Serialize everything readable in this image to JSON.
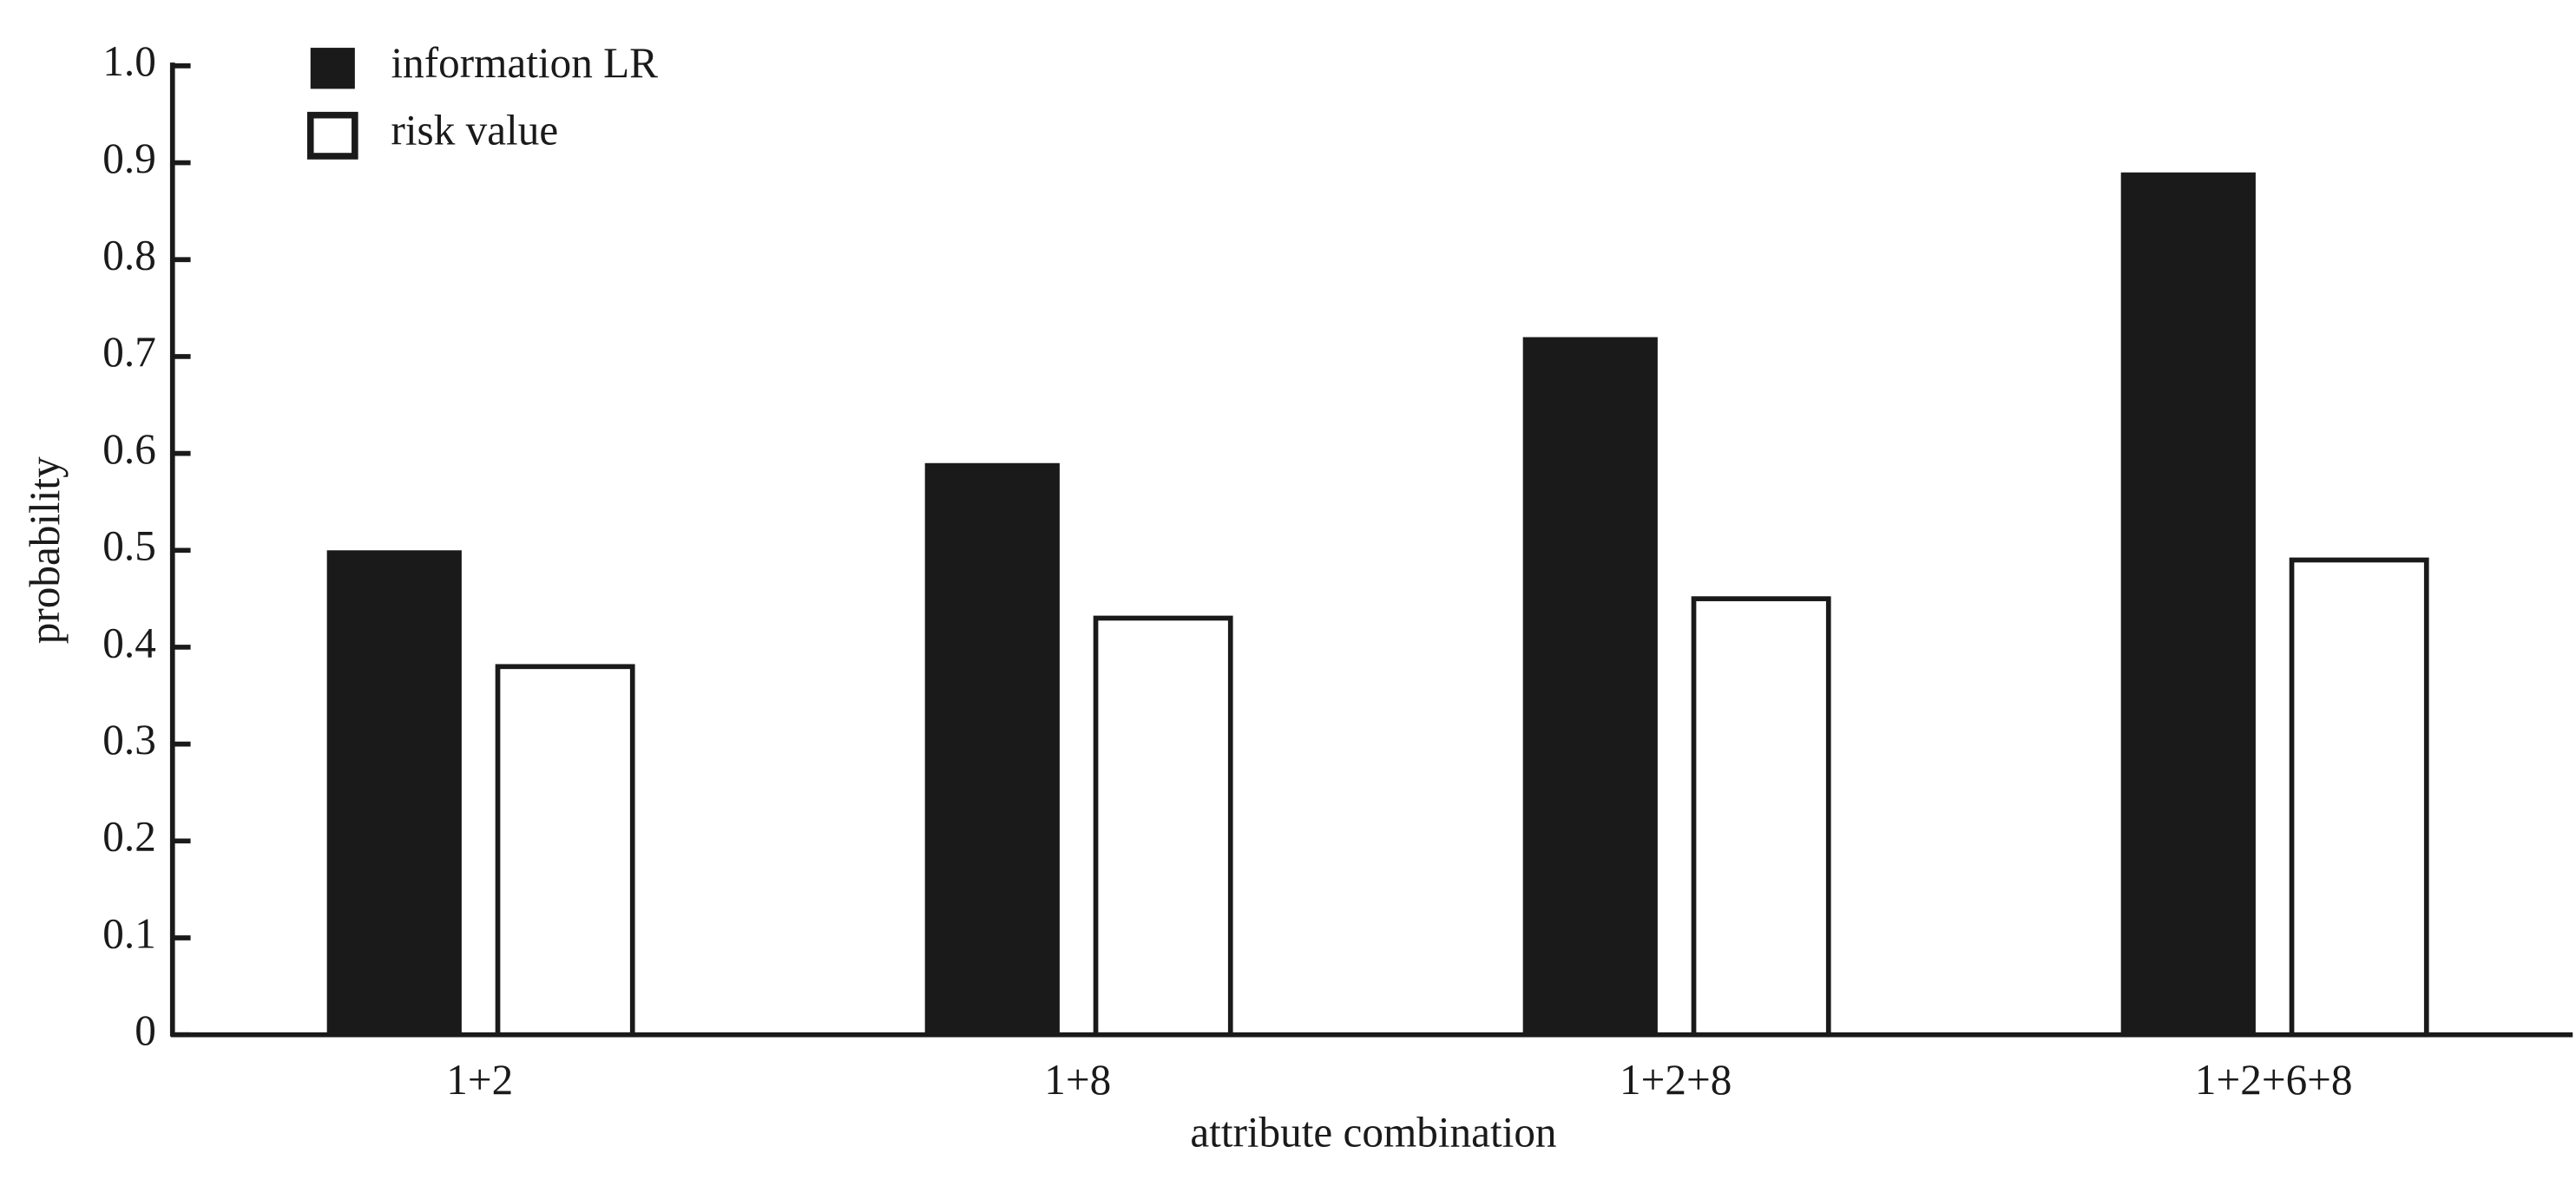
{
  "chart_data": {
    "type": "bar",
    "xlabel": "attribute combination",
    "ylabel": "probability",
    "categories": [
      "1+2",
      "1+8",
      "1+2+8",
      "1+2+6+8"
    ],
    "series": [
      {
        "name": "information LR",
        "color": "#1a1a1a",
        "values": [
          0.5,
          0.59,
          0.72,
          0.89
        ]
      },
      {
        "name": "risk value",
        "color": "#ffffff",
        "values": [
          0.38,
          0.43,
          0.45,
          0.49
        ]
      }
    ],
    "ylim": [
      0,
      1
    ],
    "yticks": [
      0,
      0.1,
      0.2,
      0.3,
      0.4,
      0.5,
      0.6,
      0.7,
      0.8,
      0.9,
      {
        "value": 1,
        "label": "1.0"
      }
    ],
    "legend": "upper left"
  }
}
